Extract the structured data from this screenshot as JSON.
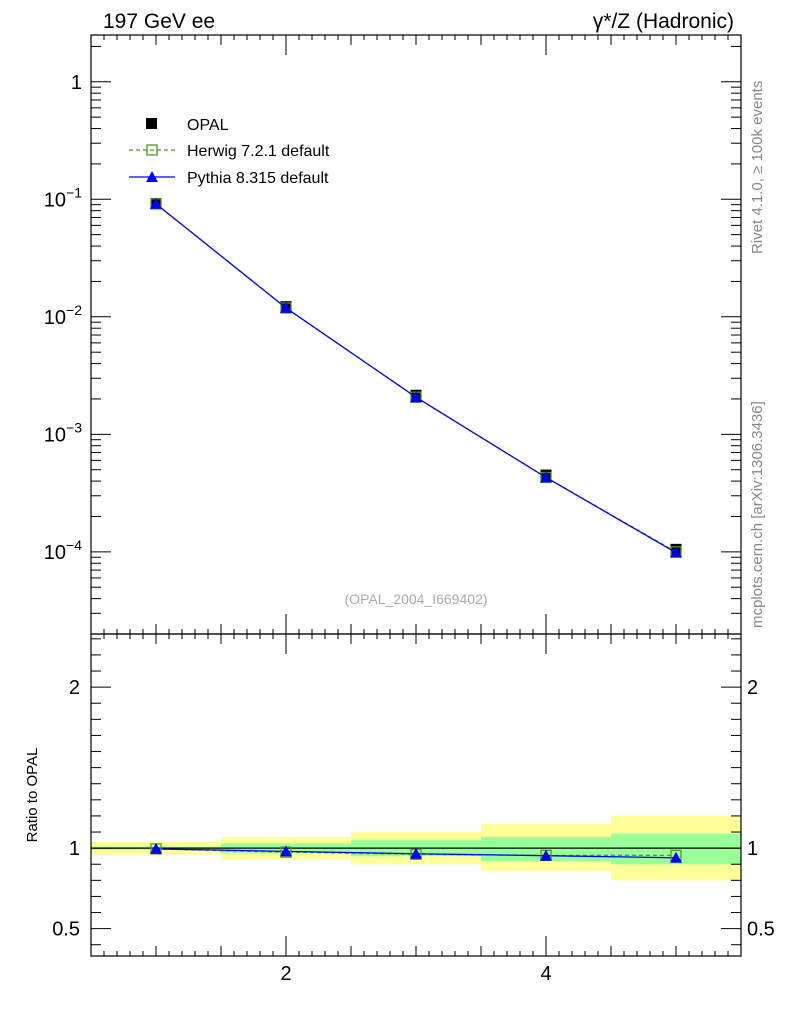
{
  "header": {
    "left_title": "197 GeV ee",
    "right_title": "γ*/Z (Hadronic)"
  },
  "side_labels": {
    "rivet": "Rivet 4.1.0, ≥ 100k events",
    "mcplots": "mcplots.cern.ch [arXiv:1306.3436]"
  },
  "watermark": "(OPAL_2004_I669402)",
  "colors": {
    "data": "#000000",
    "herwig": "#4d9a1a",
    "pythia": "#0000ff",
    "band_inner": "#99ff99",
    "band_outer": "#ffff99"
  },
  "chart_data": [
    {
      "type": "line",
      "scale": "log",
      "title": "197 GeV ee",
      "xlabel": "",
      "ylabel": "",
      "xlim": [
        0.5,
        5.5
      ],
      "ylim": [
        2e-05,
        2.5
      ],
      "yticks": [
        1,
        0.1,
        0.01,
        0.001,
        0.0001
      ],
      "ytick_labels": [
        {
          "base": "1",
          "exp": ""
        },
        {
          "base": "10",
          "exp": "−1"
        },
        {
          "base": "10",
          "exp": "−2"
        },
        {
          "base": "10",
          "exp": "−3"
        },
        {
          "base": "10",
          "exp": "−4"
        }
      ],
      "x": [
        1,
        2,
        3,
        4,
        5
      ],
      "series": [
        {
          "name": "OPAL",
          "style": "data",
          "values": [
            0.092,
            0.0122,
            0.00215,
            0.00045,
            0.000105
          ]
        },
        {
          "name": "Herwig 7.2.1 default",
          "style": "herwig",
          "values": [
            0.0915,
            0.0119,
            0.00207,
            0.00043,
            0.0001
          ]
        },
        {
          "name": "Pythia 8.315 default",
          "style": "pythia",
          "values": [
            0.0915,
            0.0119,
            0.00207,
            0.00043,
            9.85e-05
          ]
        }
      ],
      "legend_position": "top-left"
    },
    {
      "type": "line",
      "title": "",
      "xlabel": "",
      "ylabel": "Ratio to OPAL",
      "xlim": [
        0.5,
        5.5
      ],
      "ylim": [
        0.33,
        2.33
      ],
      "yticks": [
        0.5,
        1,
        2
      ],
      "ytick_labels": [
        "0.5",
        "1",
        "2"
      ],
      "xticks": [
        2,
        4
      ],
      "xtick_labels": [
        "2",
        "4"
      ],
      "bins": [
        [
          0.5,
          1.5
        ],
        [
          1.5,
          2.5
        ],
        [
          2.5,
          3.5
        ],
        [
          3.5,
          4.5
        ],
        [
          4.5,
          5.5
        ]
      ],
      "band_inner": [
        [
          0.99,
          1.01
        ],
        [
          0.97,
          1.03
        ],
        [
          0.95,
          1.05
        ],
        [
          0.92,
          1.07
        ],
        [
          0.9,
          1.09
        ]
      ],
      "band_outer": [
        [
          0.96,
          1.04
        ],
        [
          0.93,
          1.07
        ],
        [
          0.9,
          1.1
        ],
        [
          0.86,
          1.15
        ],
        [
          0.8,
          1.2
        ]
      ],
      "x": [
        1,
        2,
        3,
        4,
        5
      ],
      "series": [
        {
          "name": "Herwig 7.2.1 default",
          "style": "herwig",
          "values": [
            0.995,
            0.975,
            0.962,
            0.955,
            0.955
          ]
        },
        {
          "name": "Pythia 8.315 default",
          "style": "pythia",
          "values": [
            0.995,
            0.98,
            0.965,
            0.953,
            0.94
          ]
        }
      ]
    }
  ]
}
